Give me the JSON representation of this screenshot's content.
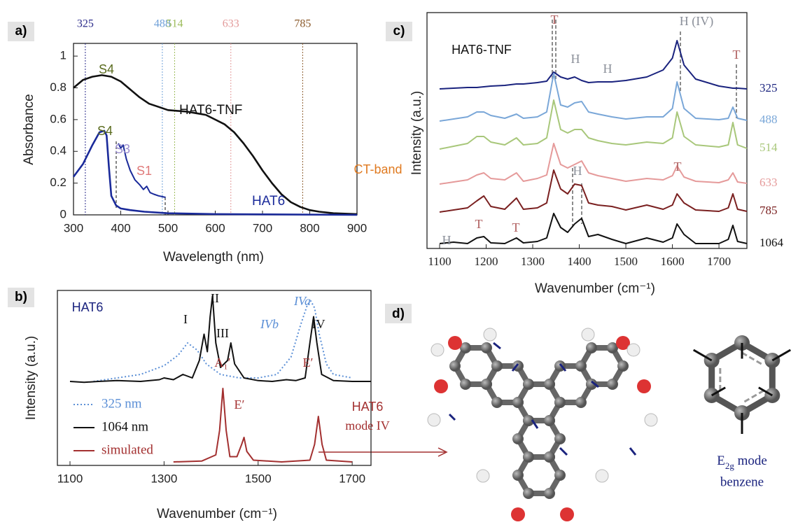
{
  "chart_data": [
    {
      "type": "line",
      "panel_label": "a)",
      "x_label": "Wavelength (nm)",
      "y_label": "Absorbance",
      "xlim": [
        300,
        900
      ],
      "ylim": [
        0,
        1.08
      ],
      "xticks": [
        300,
        400,
        500,
        600,
        700,
        800,
        900
      ],
      "yticks": [
        0,
        0.2,
        0.4,
        0.6,
        0.8,
        1
      ],
      "laser_lines": [
        {
          "value": 325,
          "color": "#2a2a8a"
        },
        {
          "value": 488,
          "color": "#6fa0d8"
        },
        {
          "value": 514,
          "color": "#9bbb59"
        },
        {
          "value": 633,
          "color": "#e39a9a"
        },
        {
          "value": 785,
          "color": "#8b5a2b"
        }
      ],
      "series": [
        {
          "name": "HAT6-TNF",
          "color": "#111111",
          "x": [
            300,
            320,
            340,
            360,
            380,
            400,
            420,
            440,
            460,
            480,
            500,
            520,
            540,
            560,
            580,
            600,
            620,
            640,
            660,
            680,
            700,
            720,
            740,
            760,
            780,
            800,
            820,
            850,
            900
          ],
          "values": [
            0.8,
            0.85,
            0.87,
            0.88,
            0.87,
            0.84,
            0.79,
            0.74,
            0.7,
            0.68,
            0.66,
            0.655,
            0.65,
            0.64,
            0.63,
            0.6,
            0.57,
            0.52,
            0.45,
            0.37,
            0.28,
            0.2,
            0.13,
            0.08,
            0.05,
            0.03,
            0.02,
            0.01,
            0.005
          ]
        },
        {
          "name": "HAT6",
          "color": "#1a2a9a",
          "x": [
            300,
            320,
            340,
            355,
            365,
            370,
            375,
            380,
            390,
            400,
            420,
            450,
            500,
            600,
            700,
            900
          ],
          "values": [
            0.24,
            0.32,
            0.44,
            0.52,
            0.53,
            0.5,
            0.3,
            0.12,
            0.06,
            0.04,
            0.03,
            0.02,
            0.01,
            0.005,
            0.003,
            0
          ]
        },
        {
          "color": "#1a2a9a",
          "x": [
            395,
            400,
            405,
            412,
            420,
            430,
            440,
            448,
            455,
            462,
            470,
            480,
            495
          ],
          "values": [
            0.45,
            0.42,
            0.44,
            0.35,
            0.28,
            0.22,
            0.19,
            0.16,
            0.18,
            0.14,
            0.13,
            0.12,
            0.11
          ]
        }
      ],
      "annotations": [
        {
          "text": "S4",
          "color": "#5a6b1e"
        },
        {
          "text": "CT-band",
          "color": "#e07a20"
        },
        {
          "text": "S4",
          "color": "#5a6b1e"
        },
        {
          "text": "S3",
          "color": "#9b8fd0"
        },
        {
          "text": "S1",
          "color": "#e07a7a"
        }
      ]
    },
    {
      "type": "line",
      "panel_label": "b)",
      "x_label": "Wavenumber (cm⁻¹)",
      "y_label": "Intensity (a.u.)",
      "xlim": [
        1100,
        1740
      ],
      "ylim": [
        0,
        100
      ],
      "xticks": [
        1100,
        1300,
        1500,
        1700
      ],
      "series": [
        {
          "name": "325 nm",
          "color": "#5b8fd6",
          "style": "dotted",
          "x": [
            1150,
            1200,
            1250,
            1300,
            1330,
            1350,
            1370,
            1390,
            1420,
            1460,
            1500,
            1540,
            1570,
            1590,
            1605,
            1612,
            1620,
            1630,
            1645,
            1660,
            1700
          ],
          "values": [
            48,
            50,
            52,
            57,
            63,
            70,
            66,
            58,
            52,
            50,
            50,
            52,
            62,
            80,
            92,
            94,
            90,
            75,
            58,
            52,
            50
          ]
        },
        {
          "name": "1064 nm",
          "color": "#111111",
          "style": "solid",
          "x": [
            1100,
            1130,
            1160,
            1200,
            1250,
            1290,
            1300,
            1320,
            1340,
            1360,
            1375,
            1385,
            1392,
            1398,
            1403,
            1410,
            1420,
            1435,
            1442,
            1450,
            1470,
            1500,
            1530,
            1560,
            1580,
            1600,
            1610,
            1618,
            1625,
            1635,
            1660,
            1700,
            1740
          ],
          "values": [
            48,
            47.5,
            48,
            48.5,
            48,
            49,
            50,
            49,
            52,
            50,
            60,
            75,
            65,
            85,
            97,
            70,
            56,
            60,
            70,
            58,
            50,
            48.5,
            48,
            49,
            48.5,
            50,
            70,
            85,
            70,
            52,
            48.5,
            48,
            48
          ]
        },
        {
          "name": "simulated",
          "color": "#a33030",
          "style": "solid",
          "x": [
            1320,
            1380,
            1410,
            1418,
            1425,
            1432,
            1440,
            1455,
            1465,
            1470,
            1476,
            1490,
            1550,
            1610,
            1620,
            1628,
            1636,
            1645,
            1700
          ],
          "values": [
            2,
            2.5,
            6,
            20,
            44,
            20,
            5,
            5,
            12,
            16,
            8,
            3,
            2,
            3,
            12,
            28,
            12,
            3,
            2
          ]
        }
      ],
      "annotations": [
        {
          "text": "HAT6",
          "color": "#1a237e"
        },
        {
          "text": "I",
          "color": "#111111"
        },
        {
          "text": "II",
          "color": "#111111"
        },
        {
          "text": "III",
          "color": "#111111"
        },
        {
          "text": "IV",
          "color": "#111111"
        },
        {
          "text": "IVb",
          "color": "#5b8fd6",
          "style": "italic"
        },
        {
          "text": "IVa",
          "color": "#5b8fd6",
          "style": "italic"
        },
        {
          "text": "A₁′",
          "color": "#a33030"
        },
        {
          "text": "E′",
          "color": "#a33030"
        },
        {
          "text": "E′",
          "color": "#a33030"
        },
        {
          "text": "HAT6",
          "color": "#a33030"
        },
        {
          "text": "mode IV",
          "color": "#a33030"
        }
      ]
    },
    {
      "type": "line",
      "panel_label": "c)",
      "x_label": "Wavenumber (cm⁻¹)",
      "y_label": "Intensity (a.u.)",
      "xlim": [
        1100,
        1760
      ],
      "ylim": [
        0,
        337
      ],
      "xticks": [
        1100,
        1200,
        1300,
        1400,
        1500,
        1600,
        1700
      ],
      "x": [
        1100,
        1130,
        1160,
        1180,
        1195,
        1210,
        1240,
        1265,
        1280,
        1310,
        1330,
        1345,
        1360,
        1375,
        1390,
        1405,
        1420,
        1440,
        1470,
        1500,
        1545,
        1580,
        1600,
        1610,
        1625,
        1650,
        1700,
        1720,
        1730,
        1740,
        1760
      ],
      "series": [
        {
          "name": "325",
          "color": "#1a237e",
          "values": [
            228,
            229,
            230,
            230,
            231,
            232,
            233,
            235,
            235,
            237,
            239,
            252,
            245,
            242,
            245,
            240,
            237,
            238,
            238,
            240,
            245,
            255,
            272,
            297,
            262,
            242,
            232,
            230,
            229,
            229,
            228
          ]
        },
        {
          "name": "488",
          "color": "#7aa7d8",
          "values": [
            182,
            185,
            188,
            195,
            195,
            190,
            186,
            192,
            186,
            188,
            195,
            250,
            205,
            202,
            208,
            210,
            195,
            192,
            188,
            185,
            188,
            188,
            200,
            238,
            200,
            186,
            184,
            186,
            202,
            186,
            183
          ]
        },
        {
          "name": "514",
          "color": "#a8c77a",
          "values": [
            142,
            146,
            150,
            160,
            160,
            152,
            148,
            158,
            148,
            150,
            158,
            212,
            170,
            165,
            170,
            170,
            158,
            154,
            150,
            148,
            152,
            150,
            158,
            195,
            160,
            148,
            145,
            148,
            180,
            148,
            143
          ]
        },
        {
          "name": "633",
          "color": "#e59a9a",
          "values": [
            92,
            95,
            98,
            105,
            108,
            100,
            98,
            108,
            96,
            100,
            105,
            150,
            120,
            115,
            120,
            125,
            108,
            104,
            100,
            96,
            100,
            98,
            104,
            118,
            102,
            96,
            94,
            98,
            108,
            95,
            93
          ]
        },
        {
          "name": "785",
          "color": "#7a2020",
          "values": [
            52,
            55,
            58,
            68,
            75,
            60,
            56,
            72,
            56,
            58,
            65,
            112,
            85,
            78,
            92,
            90,
            65,
            62,
            60,
            55,
            62,
            56,
            62,
            78,
            65,
            55,
            53,
            58,
            78,
            56,
            53
          ]
        },
        {
          "name": "1064",
          "color": "#111111",
          "values": [
            7,
            9,
            7,
            15,
            17,
            8,
            7,
            15,
            8,
            10,
            15,
            50,
            30,
            23,
            35,
            43,
            17,
            20,
            13,
            7,
            15,
            9,
            15,
            35,
            20,
            7,
            7,
            13,
            33,
            10,
            7
          ]
        }
      ],
      "annotations": [
        {
          "text": "HAT6-TNF",
          "color": "#111111"
        },
        {
          "text": "T",
          "color": "#b06060"
        },
        {
          "text": "H",
          "color": "#8a8f99"
        },
        {
          "text": "H",
          "color": "#8a8f99"
        },
        {
          "text": "H (IV)",
          "color": "#8a8f99"
        },
        {
          "text": "T",
          "color": "#b06060"
        },
        {
          "text": "H",
          "color": "#8a8f99"
        },
        {
          "text": "T",
          "color": "#b06060"
        },
        {
          "text": "H",
          "color": "#8a8f99"
        },
        {
          "text": "T",
          "color": "#b06060"
        },
        {
          "text": "T",
          "color": "#b06060"
        }
      ]
    }
  ],
  "diagram": {
    "panel_label": "d)",
    "mode_label": {
      "symbol": "E",
      "subscript": "2g",
      "text": " mode"
    },
    "molecule": "benzene"
  }
}
